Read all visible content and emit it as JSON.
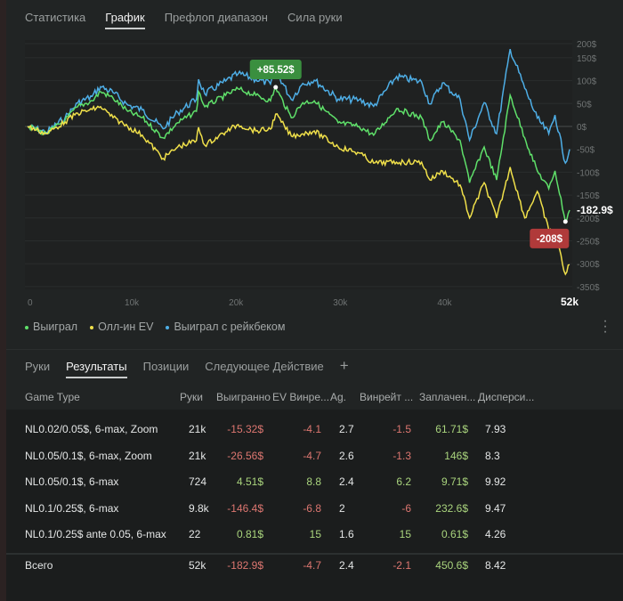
{
  "top_tabs": [
    {
      "label": "Статистика"
    },
    {
      "label": "График",
      "active": true
    },
    {
      "label": "Префлоп диапазон"
    },
    {
      "label": "Сила руки"
    }
  ],
  "colors": {
    "won": "#5fe06a",
    "allin_ev": "#f0e04a",
    "won_rakeback": "#4eaee6",
    "negative": "#dc7670",
    "positive": "#a9d47d",
    "marker_max": "#3a8f3f",
    "marker_min": "#b03a3a"
  },
  "chart_data": {
    "type": "line",
    "x_ticks": [
      "0",
      "10k",
      "20k",
      "30k",
      "40k",
      "52k"
    ],
    "x_tick_values": [
      0,
      10,
      20,
      30,
      40,
      52
    ],
    "y_ticks": [
      "200$",
      "150$",
      "100$",
      "50$",
      "0$",
      "-50$",
      "-100$",
      "-150$",
      "-200$",
      "-250$",
      "-300$",
      "-350$"
    ],
    "y_tick_values": [
      200,
      150,
      100,
      50,
      0,
      -50,
      -100,
      -150,
      -200,
      -250,
      -300,
      -350
    ],
    "xlim": [
      0,
      52
    ],
    "ylim": [
      -360,
      205
    ],
    "grid": true,
    "legend_position": "bottom-left",
    "x": [
      0,
      1.8,
      3.6,
      4.8,
      6.2,
      7,
      8.2,
      9.6,
      11,
      13,
      14.4,
      16.2,
      16.4,
      17,
      19,
      20.2,
      21.9,
      23.3,
      23.8,
      25.3,
      26.4,
      27.5,
      29.8,
      31.8,
      33.2,
      35.4,
      37.8,
      38.6,
      39.8,
      41.5,
      42.4,
      43.8,
      45,
      46.3,
      47.7,
      48.9,
      50,
      50.6,
      51.6,
      52
    ],
    "series": [
      {
        "name": "Выиграл",
        "color": "#5fe06a",
        "values": [
          0,
          -16,
          14,
          43,
          56,
          76,
          62,
          33,
          19,
          -25,
          8,
          33,
          76,
          43,
          68,
          82,
          68,
          56,
          85.52,
          19,
          52,
          56,
          8,
          0,
          -19,
          39,
          19,
          -31,
          10,
          -31,
          -123,
          -45,
          -117,
          68,
          -25,
          -97,
          -136,
          -97,
          -208,
          -182.9
        ]
      },
      {
        "name": "Олл-ин EV",
        "color": "#f0e04a",
        "values": [
          0,
          -16,
          10,
          29,
          37,
          43,
          19,
          0,
          -19,
          -70,
          -45,
          -31,
          -2,
          -41,
          -12,
          4,
          -10,
          -6,
          27,
          -21,
          -16,
          -10,
          -45,
          -58,
          -80,
          -78,
          -78,
          -117,
          -97,
          -128,
          -200,
          -123,
          -200,
          -89,
          -200,
          -142,
          -226,
          -233,
          -323,
          -302
        ]
      },
      {
        "name": "Выиграл с рейкбеком",
        "color": "#4eaee6",
        "values": [
          0,
          -13,
          19,
          51,
          66,
          87,
          74,
          47,
          36,
          -5,
          31,
          59,
          103,
          71,
          99,
          115,
          103,
          93,
          123.5,
          59,
          94,
          101,
          60,
          58,
          44,
          109,
          97,
          49,
          95,
          59,
          -30,
          52,
          -16,
          169,
          83,
          18,
          -16,
          25,
          -80,
          -50
        ]
      }
    ],
    "annotations": [
      {
        "label": "+85.52$",
        "x": 23.8,
        "y": 85.52,
        "type": "max"
      },
      {
        "label": "-208$",
        "x": 51.6,
        "y": -208,
        "type": "min"
      },
      {
        "label": "-182.9$",
        "x": 52,
        "y": -182.9,
        "type": "end"
      }
    ]
  },
  "bottom_tabs": [
    {
      "label": "Руки"
    },
    {
      "label": "Результаты",
      "active": true
    },
    {
      "label": "Позиции"
    },
    {
      "label": "Следующее Действие"
    }
  ],
  "add_tab_label": "+",
  "table": {
    "headers": [
      "Game Type",
      "Руки",
      "Выигранно",
      "EV Винре...",
      "Ag.",
      "Винрейт ...",
      "Заплачен...",
      "Дисперси..."
    ],
    "rows": [
      [
        "NL0.02/0.05$, 6-max, Zoom",
        "21k",
        "-15.32$",
        "-4.1",
        "2.7",
        "-1.5",
        "61.71$",
        "7.93"
      ],
      [
        "NL0.05/0.1$, 6-max, Zoom",
        "21k",
        "-26.56$",
        "-4.7",
        "2.6",
        "-1.3",
        "146$",
        "8.3"
      ],
      [
        "NL0.05/0.1$, 6-max",
        "724",
        "4.51$",
        "8.8",
        "2.4",
        "6.2",
        "9.71$",
        "9.92"
      ],
      [
        "NL0.1/0.25$, 6-max",
        "9.8k",
        "-146.4$",
        "-6.8",
        "2",
        "-6",
        "232.6$",
        "9.47"
      ],
      [
        "NL0.1/0.25$ ante 0.05, 6-max",
        "22",
        "0.81$",
        "15",
        "1.6",
        "15",
        "0.61$",
        "4.26"
      ]
    ],
    "total": [
      "Всего",
      "52k",
      "-182.9$",
      "-4.7",
      "2.4",
      "-2.1",
      "450.6$",
      "8.42"
    ]
  }
}
